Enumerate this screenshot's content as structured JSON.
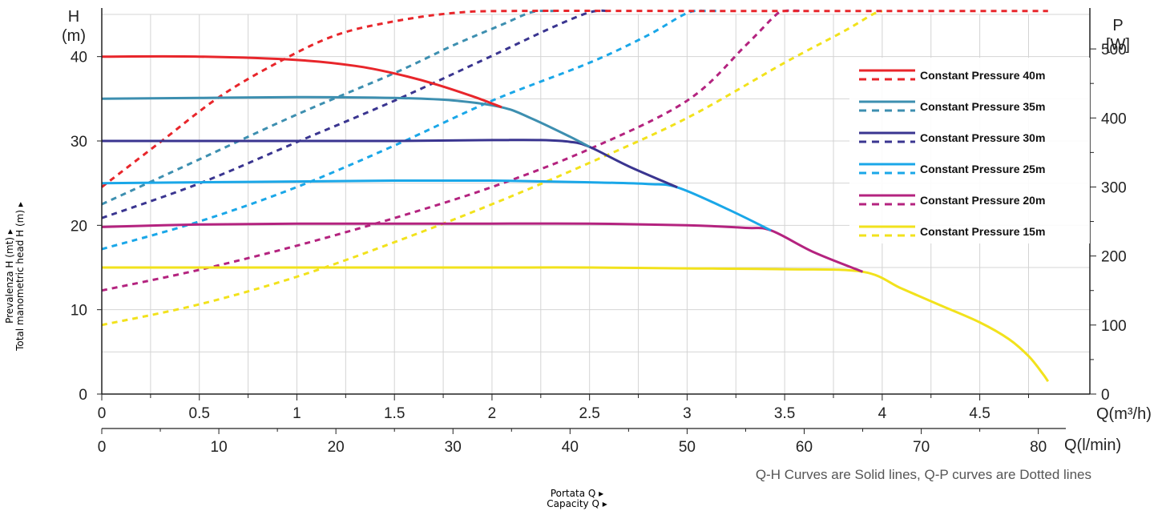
{
  "chart_data": {
    "type": "line",
    "title": "",
    "left_axis": {
      "unit_line1": "H",
      "unit_line2": "(m)",
      "range": [
        0,
        45
      ],
      "ticks": [
        0,
        10,
        20,
        30,
        40
      ]
    },
    "right_axis": {
      "unit_line1": "P",
      "unit_line2": "[W]",
      "range": [
        0,
        550
      ],
      "ticks": [
        0,
        100,
        200,
        300,
        400,
        500
      ]
    },
    "x_axis_m3h": {
      "unit": "Q(m³/h)",
      "range": [
        0,
        4.9
      ],
      "ticks": [
        "0",
        "0.5",
        "1",
        "1.5",
        "2",
        "2.5",
        "3",
        "3.5",
        "4",
        "4.5"
      ],
      "tick_values": [
        0,
        0.5,
        1,
        1.5,
        2,
        2.5,
        3,
        3.5,
        4,
        4.5
      ]
    },
    "x_axis_lmin": {
      "unit": "Q(l/min)",
      "ticks": [
        "0",
        "10",
        "20",
        "30",
        "40",
        "50",
        "60",
        "70",
        "80"
      ],
      "tick_values": [
        0,
        10,
        20,
        30,
        40,
        50,
        60,
        70,
        80
      ]
    },
    "side_label_line1": "Prevalenza H (mt) ▸",
    "side_label_line2": "Total manometric head H (m) ▸",
    "bottom_label_line1": "Portata Q ▸",
    "bottom_label_line2": "Capacity Q ▸",
    "note": "Q-H Curves are Solid lines, Q-P curves are Dotted lines",
    "grid": true,
    "legend_position": "top-right",
    "series": [
      {
        "name": "Constant Pressure 40m",
        "color": "#e8262b",
        "qh": [
          [
            0,
            40
          ],
          [
            0.5,
            40
          ],
          [
            1,
            39.6
          ],
          [
            1.3,
            38.9
          ],
          [
            1.5,
            38.0
          ],
          [
            1.7,
            36.8
          ],
          [
            1.9,
            35.3
          ],
          [
            2.05,
            34.0
          ]
        ],
        "qp": [
          [
            0,
            300
          ],
          [
            0.3,
            365
          ],
          [
            0.6,
            430
          ],
          [
            0.9,
            480
          ],
          [
            1.2,
            520
          ],
          [
            1.5,
            540
          ],
          [
            1.8,
            552
          ],
          [
            2.1,
            555
          ],
          [
            3,
            555
          ],
          [
            4,
            555
          ],
          [
            4.85,
            555
          ]
        ]
      },
      {
        "name": "Constant Pressure 35m",
        "color": "#3d8fb0",
        "qh": [
          [
            0,
            35
          ],
          [
            0.5,
            35.1
          ],
          [
            1,
            35.2
          ],
          [
            1.5,
            35.1
          ],
          [
            1.8,
            34.8
          ],
          [
            2.05,
            34.0
          ],
          [
            2.2,
            32.7
          ],
          [
            2.4,
            30.5
          ],
          [
            2.5,
            29.3
          ]
        ],
        "qp": [
          [
            0,
            275
          ],
          [
            0.5,
            340
          ],
          [
            1,
            405
          ],
          [
            1.5,
            465
          ],
          [
            1.8,
            505
          ],
          [
            2.05,
            535
          ],
          [
            2.2,
            553
          ],
          [
            2.3,
            555
          ],
          [
            2.35,
            555
          ]
        ]
      },
      {
        "name": "Constant Pressure 30m",
        "color": "#3a3590",
        "qh": [
          [
            0,
            30
          ],
          [
            0.5,
            30
          ],
          [
            1,
            30
          ],
          [
            1.5,
            30
          ],
          [
            2,
            30.1
          ],
          [
            2.25,
            30.1
          ],
          [
            2.4,
            29.9
          ],
          [
            2.5,
            29.3
          ],
          [
            2.7,
            27.0
          ],
          [
            2.95,
            24.5
          ]
        ],
        "qp": [
          [
            0,
            255
          ],
          [
            0.5,
            305
          ],
          [
            1,
            365
          ],
          [
            1.5,
            425
          ],
          [
            2,
            490
          ],
          [
            2.3,
            530
          ],
          [
            2.5,
            553
          ],
          [
            2.6,
            555
          ]
        ]
      },
      {
        "name": "Constant Pressure 25m",
        "color": "#1aa7e8",
        "qh": [
          [
            0,
            25
          ],
          [
            0.5,
            25.1
          ],
          [
            1,
            25.2
          ],
          [
            1.5,
            25.3
          ],
          [
            2,
            25.3
          ],
          [
            2.5,
            25.1
          ],
          [
            2.8,
            24.9
          ],
          [
            2.95,
            24.5
          ],
          [
            3.2,
            22.0
          ],
          [
            3.43,
            19.4
          ]
        ],
        "qp": [
          [
            0,
            210
          ],
          [
            0.5,
            250
          ],
          [
            1,
            300
          ],
          [
            1.5,
            360
          ],
          [
            2,
            425
          ],
          [
            2.5,
            480
          ],
          [
            2.8,
            520
          ],
          [
            3.0,
            552
          ],
          [
            3.1,
            555
          ],
          [
            3.15,
            555
          ]
        ]
      },
      {
        "name": "Constant Pressure 20m",
        "color": "#b4237f",
        "qh": [
          [
            0,
            19.8
          ],
          [
            0.5,
            20.1
          ],
          [
            1,
            20.2
          ],
          [
            1.5,
            20.2
          ],
          [
            2,
            20.2
          ],
          [
            2.5,
            20.2
          ],
          [
            3,
            20.0
          ],
          [
            3.3,
            19.7
          ],
          [
            3.43,
            19.4
          ],
          [
            3.65,
            16.8
          ],
          [
            3.9,
            14.5
          ]
        ],
        "qp": [
          [
            0,
            150
          ],
          [
            0.5,
            180
          ],
          [
            1,
            215
          ],
          [
            1.5,
            255
          ],
          [
            2,
            300
          ],
          [
            2.5,
            355
          ],
          [
            3,
            425
          ],
          [
            3.3,
            505
          ],
          [
            3.45,
            548
          ],
          [
            3.5,
            555
          ],
          [
            3.6,
            555
          ]
        ]
      },
      {
        "name": "Constant Pressure 15m",
        "color": "#f2e21c",
        "qh": [
          [
            0,
            15
          ],
          [
            0.5,
            15
          ],
          [
            1,
            15
          ],
          [
            1.5,
            15
          ],
          [
            2,
            15
          ],
          [
            2.5,
            15
          ],
          [
            3,
            14.9
          ],
          [
            3.5,
            14.8
          ],
          [
            3.9,
            14.5
          ],
          [
            4.1,
            12.5
          ],
          [
            4.3,
            10.5
          ],
          [
            4.5,
            8.5
          ],
          [
            4.65,
            6.5
          ],
          [
            4.75,
            4.5
          ],
          [
            4.82,
            2.5
          ],
          [
            4.85,
            1.5
          ]
        ],
        "qp": [
          [
            0,
            100
          ],
          [
            0.5,
            130
          ],
          [
            1,
            170
          ],
          [
            1.5,
            220
          ],
          [
            2,
            275
          ],
          [
            2.5,
            335
          ],
          [
            3,
            400
          ],
          [
            3.5,
            480
          ],
          [
            3.8,
            525
          ],
          [
            3.95,
            550
          ],
          [
            4.0,
            555
          ]
        ]
      }
    ]
  }
}
